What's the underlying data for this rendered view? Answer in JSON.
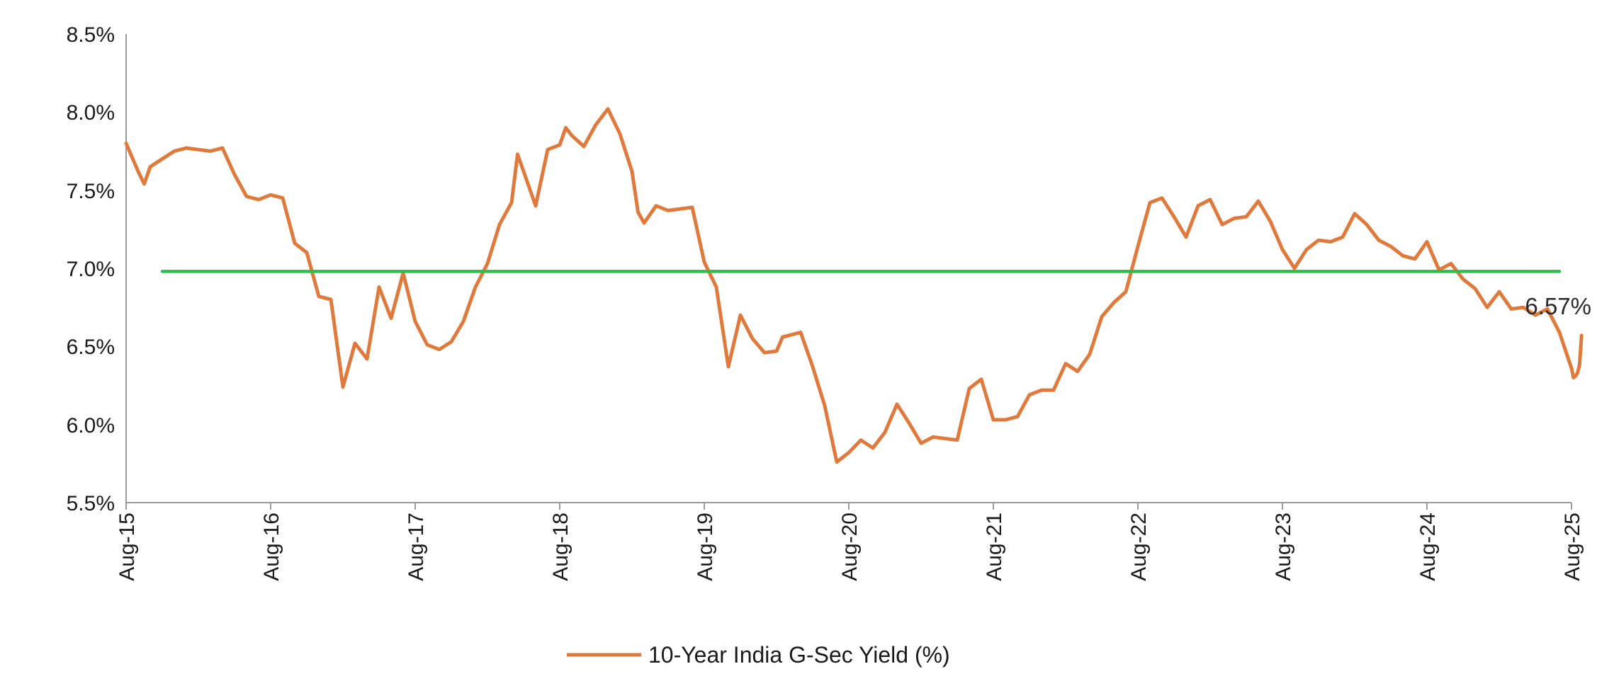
{
  "chart_data": {
    "type": "line",
    "title": "",
    "xlabel": "",
    "ylabel": "",
    "x_tick_labels": [
      "Aug-15",
      "Aug-16",
      "Aug-17",
      "Aug-18",
      "Aug-19",
      "Aug-20",
      "Aug-21",
      "Aug-22",
      "Aug-23",
      "Aug-24",
      "Aug-25"
    ],
    "y_tick_labels": [
      "8.5%",
      "8.0%",
      "7.5%",
      "7.0%",
      "6.5%",
      "6.0%",
      "5.5%"
    ],
    "y_tick_values": [
      8.5,
      8.0,
      7.5,
      7.0,
      6.5,
      6.0,
      5.5
    ],
    "ylim": [
      5.5,
      8.5
    ],
    "xlim": [
      "2015-08",
      "2025-08"
    ],
    "grid": false,
    "legend_position": "bottom",
    "series": [
      {
        "name": "10-Year India G-Sec Yield (%)",
        "color": "#e07a3c",
        "points": [
          [
            "2015-08",
            7.8
          ],
          [
            "2015-09",
            7.62
          ],
          [
            "2015-09",
            7.54
          ],
          [
            "2015-10",
            7.65
          ],
          [
            "2015-11",
            7.7
          ],
          [
            "2015-12",
            7.75
          ],
          [
            "2016-01",
            7.77
          ],
          [
            "2016-02",
            7.76
          ],
          [
            "2016-03",
            7.75
          ],
          [
            "2016-04",
            7.77
          ],
          [
            "2016-05",
            7.6
          ],
          [
            "2016-06",
            7.46
          ],
          [
            "2016-07",
            7.44
          ],
          [
            "2016-08",
            7.47
          ],
          [
            "2016-09",
            7.45
          ],
          [
            "2016-10",
            7.16
          ],
          [
            "2016-11",
            7.1
          ],
          [
            "2016-12",
            6.82
          ],
          [
            "2017-01",
            6.8
          ],
          [
            "2017-02",
            6.24
          ],
          [
            "2017-03",
            6.52
          ],
          [
            "2017-04",
            6.42
          ],
          [
            "2017-05",
            6.88
          ],
          [
            "2017-06",
            6.68
          ],
          [
            "2017-07",
            6.97
          ],
          [
            "2017-08",
            6.66
          ],
          [
            "2017-09",
            6.51
          ],
          [
            "2017-10",
            6.48
          ],
          [
            "2017-11",
            6.53
          ],
          [
            "2017-12",
            6.66
          ],
          [
            "2018-01",
            6.88
          ],
          [
            "2018-02",
            7.03
          ],
          [
            "2018-03",
            7.28
          ],
          [
            "2018-04",
            7.42
          ],
          [
            "2018-04",
            7.73
          ],
          [
            "2018-05",
            7.62
          ],
          [
            "2018-06",
            7.4
          ],
          [
            "2018-07",
            7.76
          ],
          [
            "2018-08",
            7.79
          ],
          [
            "2018-08",
            7.9
          ],
          [
            "2018-09",
            7.85
          ],
          [
            "2018-10",
            7.78
          ],
          [
            "2018-11",
            7.92
          ],
          [
            "2018-12",
            8.02
          ],
          [
            "2019-01",
            7.86
          ],
          [
            "2019-02",
            7.62
          ],
          [
            "2019-02",
            7.36
          ],
          [
            "2019-03",
            7.29
          ],
          [
            "2019-04",
            7.4
          ],
          [
            "2019-05",
            7.37
          ],
          [
            "2019-06",
            7.38
          ],
          [
            "2019-07",
            7.39
          ],
          [
            "2019-08",
            7.04
          ],
          [
            "2019-09",
            6.88
          ],
          [
            "2019-10",
            6.37
          ],
          [
            "2019-11",
            6.7
          ],
          [
            "2019-12",
            6.55
          ],
          [
            "2020-01",
            6.46
          ],
          [
            "2020-02",
            6.47
          ],
          [
            "2020-02",
            6.56
          ],
          [
            "2020-03",
            6.57
          ],
          [
            "2020-04",
            6.59
          ],
          [
            "2020-05",
            6.37
          ],
          [
            "2020-06",
            6.12
          ],
          [
            "2020-07",
            5.76
          ],
          [
            "2020-08",
            5.82
          ],
          [
            "2020-09",
            5.9
          ],
          [
            "2020-10",
            5.85
          ],
          [
            "2020-11",
            5.95
          ],
          [
            "2020-12",
            6.13
          ],
          [
            "2021-01",
            6.01
          ],
          [
            "2021-02",
            5.88
          ],
          [
            "2021-03",
            5.92
          ],
          [
            "2021-04",
            5.91
          ],
          [
            "2021-05",
            5.9
          ],
          [
            "2021-06",
            6.23
          ],
          [
            "2021-07",
            6.29
          ],
          [
            "2021-08",
            6.03
          ],
          [
            "2021-09",
            6.03
          ],
          [
            "2021-10",
            6.05
          ],
          [
            "2021-11",
            6.19
          ],
          [
            "2021-12",
            6.22
          ],
          [
            "2022-01",
            6.22
          ],
          [
            "2022-02",
            6.39
          ],
          [
            "2022-03",
            6.34
          ],
          [
            "2022-04",
            6.45
          ],
          [
            "2022-05",
            6.69
          ],
          [
            "2022-06",
            6.78
          ],
          [
            "2022-07",
            6.85
          ],
          [
            "2022-08",
            7.14
          ],
          [
            "2022-09",
            7.42
          ],
          [
            "2022-10",
            7.45
          ],
          [
            "2022-11",
            7.33
          ],
          [
            "2022-12",
            7.2
          ],
          [
            "2023-01",
            7.4
          ],
          [
            "2023-02",
            7.44
          ],
          [
            "2023-03",
            7.28
          ],
          [
            "2023-04",
            7.32
          ],
          [
            "2023-05",
            7.33
          ],
          [
            "2023-06",
            7.43
          ],
          [
            "2023-07",
            7.3
          ],
          [
            "2023-08",
            7.12
          ],
          [
            "2023-09",
            7.0
          ],
          [
            "2023-10",
            7.12
          ],
          [
            "2023-11",
            7.18
          ],
          [
            "2023-12",
            7.17
          ],
          [
            "2024-01",
            7.2
          ],
          [
            "2024-02",
            7.35
          ],
          [
            "2024-03",
            7.28
          ],
          [
            "2024-04",
            7.18
          ],
          [
            "2024-05",
            7.14
          ],
          [
            "2024-06",
            7.08
          ],
          [
            "2024-07",
            7.06
          ],
          [
            "2024-08",
            7.17
          ],
          [
            "2024-09",
            6.99
          ],
          [
            "2024-10",
            7.03
          ],
          [
            "2024-11",
            6.93
          ],
          [
            "2024-12",
            6.87
          ],
          [
            "2025-01",
            6.75
          ],
          [
            "2025-02",
            6.85
          ],
          [
            "2025-03",
            6.74
          ],
          [
            "2025-04",
            6.75
          ],
          [
            "2025-05",
            6.7
          ],
          [
            "2025-06",
            6.74
          ],
          [
            "2025-07",
            6.59
          ],
          [
            "2025-08",
            6.36
          ],
          [
            "2025-08",
            6.3
          ],
          [
            "2025-08",
            6.31
          ],
          [
            "2025-08",
            6.33
          ],
          [
            "2025-08",
            6.38
          ],
          [
            "2025-08",
            6.57
          ]
        ]
      },
      {
        "name": "",
        "color": "#2bbf4a",
        "points": [
          [
            "2015-11",
            6.98
          ],
          [
            "2025-07",
            6.98
          ]
        ]
      }
    ],
    "annotations": [
      {
        "text": "6.57%",
        "x": "2025-08",
        "y": 6.57
      }
    ]
  }
}
